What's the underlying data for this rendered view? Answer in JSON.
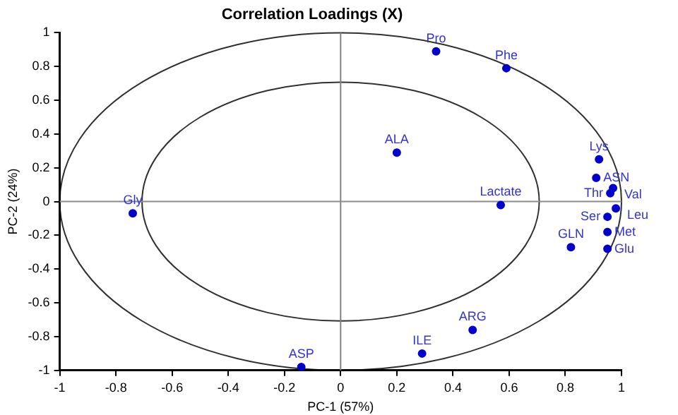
{
  "chart_data": {
    "type": "scatter",
    "title": "Correlation Loadings (X)",
    "xlabel": "PC-1 (57%)",
    "ylabel": "PC-2 (24%)",
    "xlim": [
      -1,
      1
    ],
    "ylim": [
      -1,
      1
    ],
    "xticks": [
      -1,
      -0.8,
      -0.6,
      -0.4,
      -0.2,
      0,
      0.2,
      0.4,
      0.6,
      0.8,
      1
    ],
    "yticks": [
      -1,
      -0.8,
      -0.6,
      -0.4,
      -0.2,
      0,
      0.2,
      0.4,
      0.6,
      0.8,
      1
    ],
    "grid": false,
    "legend": false,
    "marker": "circle",
    "ref_lines": [
      {
        "axis": "x",
        "value": 0,
        "color": "#808080"
      },
      {
        "axis": "y",
        "value": 0,
        "color": "#8c8c8c"
      }
    ],
    "series": [
      {
        "type": "scatter",
        "color": "#0000cc",
        "x": [
          0.34,
          0.59,
          0.2,
          0.57,
          -0.74,
          -0.14,
          0.29,
          0.47,
          0.82,
          0.92,
          0.91,
          0.97,
          0.96,
          0.98,
          0.95,
          0.95,
          0.95
        ],
        "values": [
          0.89,
          0.79,
          0.29,
          -0.02,
          -0.07,
          -0.98,
          -0.9,
          -0.76,
          -0.27,
          0.25,
          0.14,
          0.08,
          0.05,
          -0.04,
          -0.09,
          -0.18,
          -0.28
        ]
      }
    ],
    "annotations": [
      {
        "text": "Pro",
        "x": 0.34,
        "y": 0.89
      },
      {
        "text": "Phe",
        "x": 0.59,
        "y": 0.79
      },
      {
        "text": "ALA",
        "x": 0.2,
        "y": 0.29
      },
      {
        "text": "Lactate",
        "x": 0.57,
        "y": -0.02
      },
      {
        "text": "Gly",
        "x": -0.74,
        "y": -0.07
      },
      {
        "text": "ASP",
        "x": -0.14,
        "y": -0.98
      },
      {
        "text": "ILE",
        "x": 0.29,
        "y": -0.9
      },
      {
        "text": "ARG",
        "x": 0.47,
        "y": -0.76
      },
      {
        "text": "GLN",
        "x": 0.82,
        "y": -0.27
      },
      {
        "text": "Lys",
        "x": 0.92,
        "y": 0.25
      },
      {
        "text": "ASN",
        "x": 0.91,
        "y": 0.14
      },
      {
        "text": "Val",
        "x": 0.97,
        "y": 0.08
      },
      {
        "text": "Thr",
        "x": 0.96,
        "y": 0.05
      },
      {
        "text": "Leu",
        "x": 0.98,
        "y": -0.04
      },
      {
        "text": "Ser",
        "x": 0.95,
        "y": -0.09
      },
      {
        "text": "Met",
        "x": 0.95,
        "y": -0.18
      },
      {
        "text": "Glu",
        "x": 0.95,
        "y": -0.28
      }
    ]
  }
}
